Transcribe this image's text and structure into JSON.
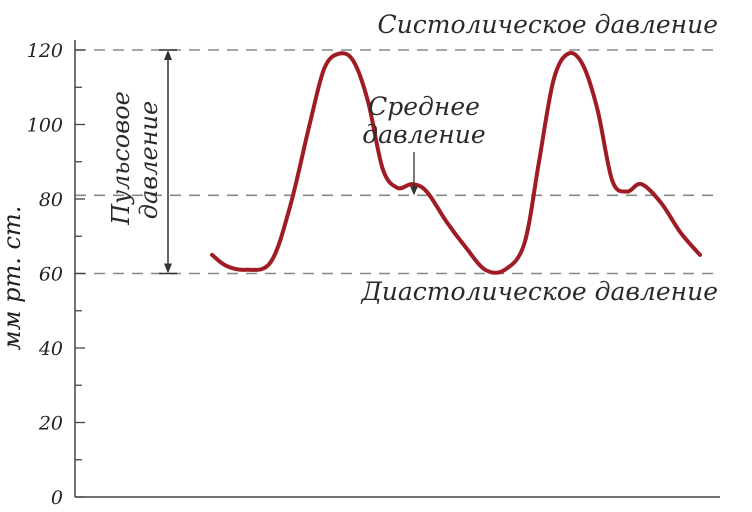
{
  "chart_data": {
    "type": "line",
    "title": "",
    "xlabel": "",
    "ylabel": "мм рт. ст.",
    "ylim": [
      0,
      120
    ],
    "yticks": [
      0,
      20,
      40,
      60,
      80,
      100,
      120
    ],
    "grid": false,
    "series": [
      {
        "color": "#a01c24",
        "x": [
          0,
          0.03,
          0.07,
          0.12,
          0.16,
          0.2,
          0.23,
          0.26,
          0.29,
          0.32,
          0.35,
          0.38,
          0.41,
          0.44,
          0.48,
          0.52,
          0.56,
          0.6,
          0.64,
          0.67,
          0.7,
          0.73,
          0.76,
          0.79,
          0.82,
          0.85,
          0.88,
          0.92,
          0.96,
          1.0
        ],
        "y": [
          65,
          62,
          61,
          63,
          78,
          100,
          115,
          119,
          117,
          106,
          88,
          83,
          84,
          82,
          74,
          67,
          61,
          61,
          68,
          90,
          112,
          119,
          116,
          104,
          85,
          82,
          84,
          79,
          71,
          65
        ]
      }
    ],
    "reference_lines": [
      {
        "value": 120,
        "label": "Систолическое давление",
        "color": "#888888"
      },
      {
        "value": 81,
        "label": "",
        "color": "#888888"
      },
      {
        "value": 60,
        "label": "Диастолическое давление",
        "color": "#888888"
      }
    ],
    "annotations": {
      "pulse_pressure_line1": "Пульсовое",
      "pulse_pressure_line2": "давление",
      "mean_pressure_line1": "Среднее",
      "mean_pressure_line2": "давление",
      "pulse_pressure_range": [
        60,
        120
      ],
      "mean_pressure_value": 81
    }
  }
}
